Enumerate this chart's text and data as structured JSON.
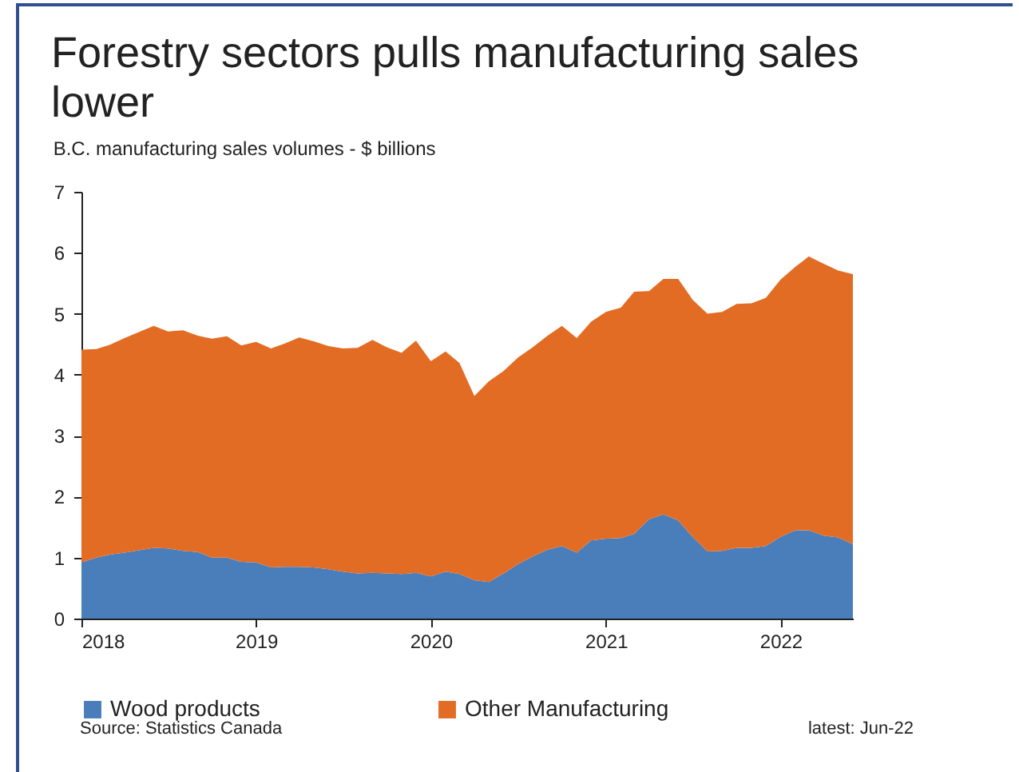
{
  "chart_data": {
    "type": "area",
    "title": "Forestry sectors pulls manufacturing sales lower",
    "subtitle": "B.C. manufacturing sales volumes - $ billions",
    "stacked": true,
    "legend": "bottom",
    "grid": false,
    "x": [
      "2018-01",
      "2018-02",
      "2018-03",
      "2018-04",
      "2018-05",
      "2018-06",
      "2018-07",
      "2018-08",
      "2018-09",
      "2018-10",
      "2018-11",
      "2018-12",
      "2019-01",
      "2019-02",
      "2019-03",
      "2019-04",
      "2019-05",
      "2019-06",
      "2019-07",
      "2019-08",
      "2019-09",
      "2019-10",
      "2019-11",
      "2019-12",
      "2020-01",
      "2020-02",
      "2020-03",
      "2020-04",
      "2020-05",
      "2020-06",
      "2020-07",
      "2020-08",
      "2020-09",
      "2020-10",
      "2020-11",
      "2020-12",
      "2021-01",
      "2021-02",
      "2021-03",
      "2021-04",
      "2021-05",
      "2021-06",
      "2021-07",
      "2021-08",
      "2021-09",
      "2021-10",
      "2021-11",
      "2021-12",
      "2022-01",
      "2022-02",
      "2022-03",
      "2022-04",
      "2022-05",
      "2022-06"
    ],
    "series": [
      {
        "name": "Wood products",
        "color": "#4a7ebb",
        "values": [
          0.92,
          1.0,
          1.05,
          1.08,
          1.12,
          1.16,
          1.15,
          1.11,
          1.09,
          1.0,
          1.0,
          0.93,
          0.92,
          0.84,
          0.85,
          0.85,
          0.84,
          0.81,
          0.77,
          0.74,
          0.75,
          0.74,
          0.73,
          0.75,
          0.69,
          0.77,
          0.73,
          0.63,
          0.6,
          0.74,
          0.89,
          1.02,
          1.13,
          1.19,
          1.08,
          1.28,
          1.31,
          1.32,
          1.39,
          1.63,
          1.71,
          1.61,
          1.34,
          1.1,
          1.11,
          1.16,
          1.16,
          1.19,
          1.34,
          1.45,
          1.45,
          1.36,
          1.33,
          1.22
        ]
      },
      {
        "name": "Other Manufacturing",
        "color": "#e36c25",
        "values": [
          3.49,
          3.42,
          3.44,
          3.52,
          3.58,
          3.64,
          3.56,
          3.62,
          3.55,
          3.59,
          3.63,
          3.55,
          3.62,
          3.59,
          3.66,
          3.76,
          3.71,
          3.66,
          3.66,
          3.7,
          3.82,
          3.71,
          3.63,
          3.81,
          3.53,
          3.61,
          3.46,
          3.02,
          3.29,
          3.32,
          3.39,
          3.43,
          3.51,
          3.61,
          3.52,
          3.59,
          3.72,
          3.78,
          3.97,
          3.74,
          3.86,
          3.96,
          3.89,
          3.9,
          3.92,
          4.0,
          4.01,
          4.07,
          4.22,
          4.32,
          4.49,
          4.46,
          4.38,
          4.43
        ]
      }
    ],
    "xlim": [
      "2018-01",
      "2022-06"
    ],
    "xticks": [
      "2018",
      "2019",
      "2020",
      "2021",
      "2022"
    ],
    "ylim": [
      0,
      7
    ],
    "yticks": [
      0,
      1,
      2,
      3,
      4,
      5,
      6,
      7
    ],
    "annotations": [
      "Source: Statistics Canada",
      "latest: Jun-22"
    ]
  }
}
